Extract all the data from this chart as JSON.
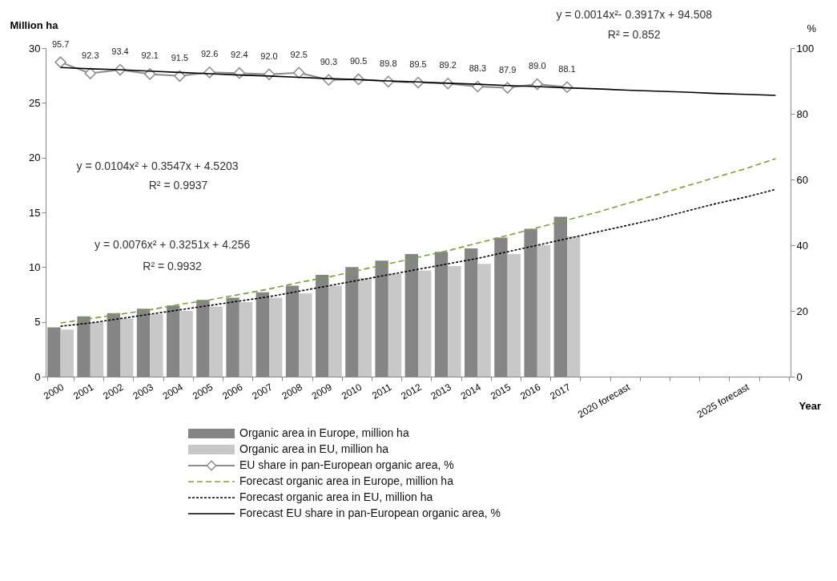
{
  "chart_data": {
    "type": "bar",
    "categories": [
      "2000",
      "2001",
      "2002",
      "2003",
      "2004",
      "2005",
      "2006",
      "2007",
      "2008",
      "2009",
      "2010",
      "2011",
      "2012",
      "2013",
      "2014",
      "2015",
      "2016",
      "2017",
      null,
      "2020 forecast",
      null,
      null,
      null,
      "2025 forecast",
      null
    ],
    "ylabel": "Million ha",
    "y2label": "%",
    "xlabel": "Year",
    "ylim": [
      0,
      30
    ],
    "yticks": [
      0,
      5,
      10,
      15,
      20,
      25,
      30
    ],
    "y2lim": [
      0,
      100
    ],
    "y2ticks": [
      0,
      20,
      40,
      60,
      80,
      100
    ],
    "grid": false,
    "legend": "bottom",
    "annotations": [
      "y = 0.0014x²- 0.3917x + 94.508",
      "R² = 0.852",
      "y = 0.0104x² + 0.3547x + 4.5203",
      "R² = 0.9937",
      "y = 0.0076x² + 0.3251x + 4.256",
      "R² = 0.9932"
    ],
    "series": [
      {
        "name": "Organic area in Europe, million ha",
        "color": "#858585",
        "values": [
          4.5,
          5.5,
          5.8,
          6.2,
          6.5,
          7.0,
          7.2,
          7.7,
          8.3,
          9.3,
          10.0,
          10.6,
          11.2,
          11.4,
          11.7,
          12.7,
          13.5,
          14.6,
          null,
          null,
          null,
          null,
          null,
          null,
          null
        ]
      },
      {
        "name": "Organic area in EU, million ha",
        "color": "#c8c8c8",
        "values": [
          4.3,
          5.0,
          5.3,
          5.7,
          6.0,
          6.4,
          6.8,
          7.2,
          7.6,
          8.3,
          9.0,
          9.4,
          9.7,
          10.1,
          10.3,
          11.2,
          12.0,
          12.8,
          null,
          null,
          null,
          null,
          null,
          null,
          null
        ]
      },
      {
        "name": "EU share in pan-European organic area, %",
        "type": "line",
        "axis": "y2",
        "color": "#8c8c8c",
        "marker": "diamond",
        "line_style": "solid",
        "values": [
          95.7,
          92.3,
          93.4,
          92.1,
          91.5,
          92.6,
          92.4,
          92.0,
          92.5,
          90.3,
          90.5,
          89.8,
          89.5,
          89.2,
          88.3,
          87.9,
          89.0,
          88.1,
          null,
          null,
          null,
          null,
          null,
          null,
          null
        ],
        "value_labels": [
          "95.7",
          "92.3",
          "93.4",
          "92.1",
          "91.5",
          "92.6",
          "92.4",
          "92.0",
          "92.5",
          "90.3",
          "90.5",
          "89.8",
          "89.5",
          "89.2",
          "88.3",
          "87.9",
          "89.0",
          "88.1",
          null,
          null,
          null,
          null,
          null,
          null,
          null
        ]
      },
      {
        "name": "Forecast organic area in Europe, million ha",
        "type": "line",
        "color": "#7f9f3f",
        "line_style": "dashed",
        "values": [
          4.9,
          5.3,
          5.7,
          6.1,
          6.6,
          7.0,
          7.5,
          8.0,
          8.6,
          9.1,
          9.7,
          10.3,
          10.9,
          11.5,
          12.2,
          12.9,
          13.6,
          14.3,
          15.0,
          15.8,
          16.6,
          17.4,
          18.2,
          19.0,
          19.9
        ]
      },
      {
        "name": "Forecast organic area in EU, million ha",
        "type": "line",
        "color": "#000000",
        "line_style": "dotted",
        "values": [
          4.6,
          4.9,
          5.3,
          5.7,
          6.1,
          6.5,
          6.9,
          7.3,
          7.8,
          8.3,
          8.8,
          9.3,
          9.8,
          10.3,
          10.8,
          11.4,
          12.0,
          12.6,
          13.2,
          13.8,
          14.4,
          15.1,
          15.8,
          16.4,
          17.1
        ]
      },
      {
        "name": "Forecast EU share in pan-European organic area, %",
        "type": "line",
        "axis": "y2",
        "color": "#000000",
        "line_style": "solid",
        "values": [
          94.1,
          93.7,
          93.4,
          93.0,
          92.6,
          92.2,
          91.8,
          91.5,
          91.1,
          90.7,
          90.4,
          90.0,
          89.7,
          89.3,
          89.0,
          88.6,
          88.3,
          87.9,
          87.6,
          87.2,
          86.9,
          86.6,
          86.2,
          85.9,
          85.6
        ]
      }
    ]
  }
}
